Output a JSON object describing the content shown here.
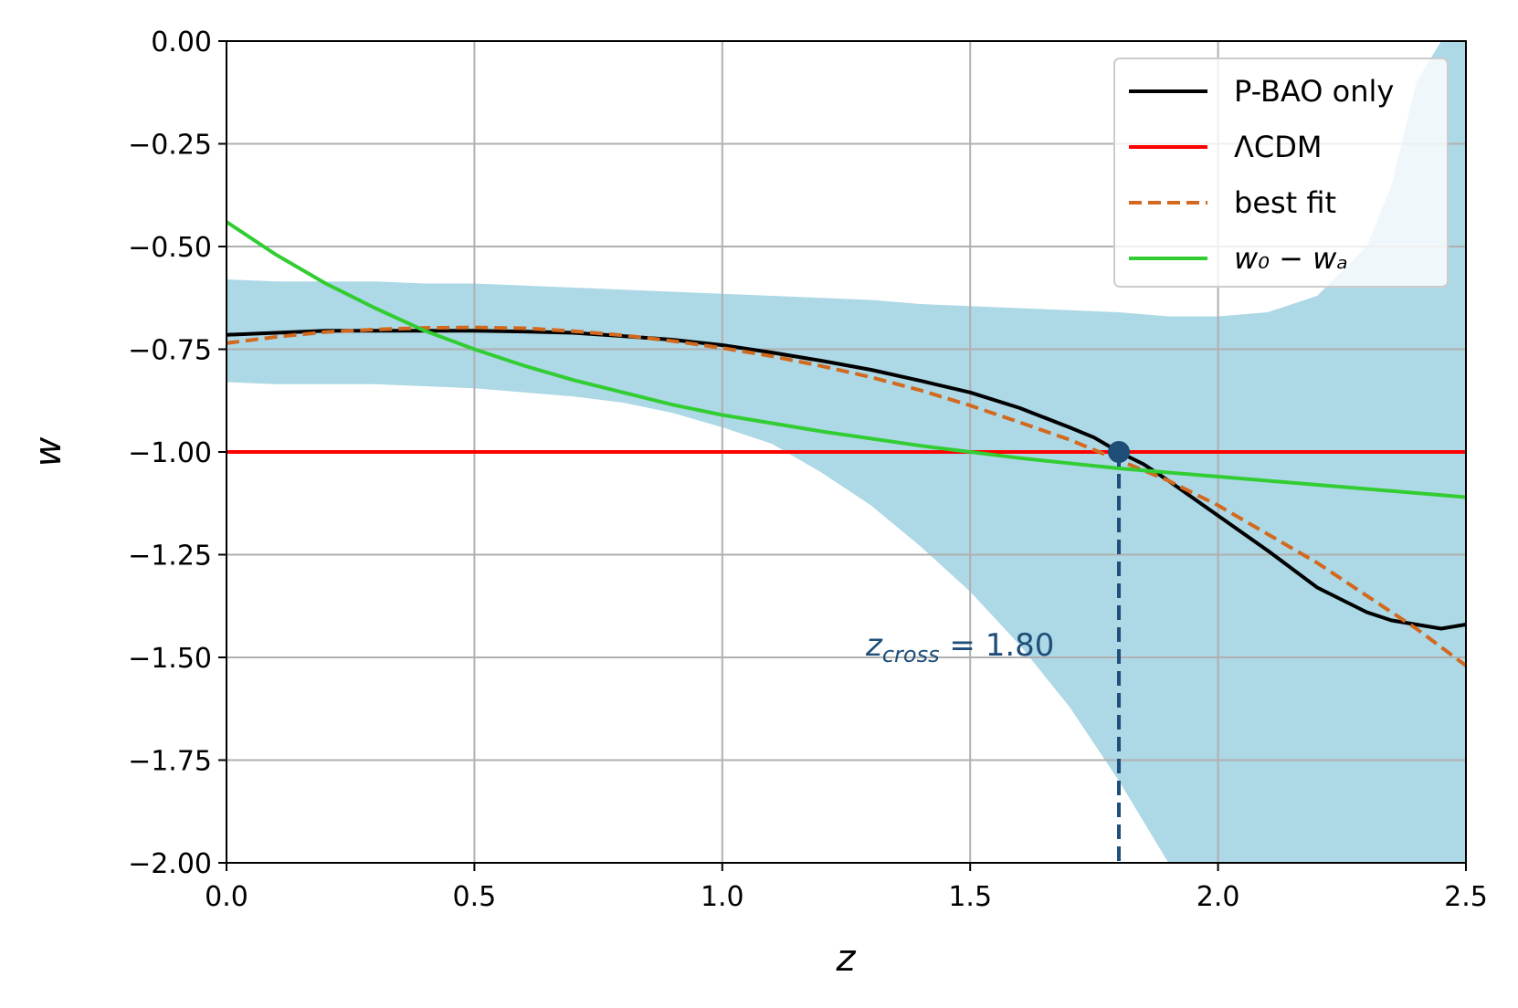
{
  "chart_data": {
    "type": "line",
    "xlabel": "z",
    "ylabel": "w",
    "xlim": [
      0.0,
      2.5
    ],
    "ylim": [
      -2.0,
      0.0
    ],
    "grid": true,
    "legend_placement": "top-right",
    "x_ticks": [
      "0.0",
      "0.5",
      "1.0",
      "1.5",
      "2.0",
      "2.5"
    ],
    "x_tick_values": [
      0.0,
      0.5,
      1.0,
      1.5,
      2.0,
      2.5
    ],
    "y_ticks": [
      "0.00",
      "−0.25",
      "−0.50",
      "−0.75",
      "−1.00",
      "−1.25",
      "−1.50",
      "−1.75",
      "−2.00"
    ],
    "y_tick_values": [
      0.0,
      -0.25,
      -0.5,
      -0.75,
      -1.0,
      -1.25,
      -1.5,
      -1.75,
      -2.0
    ],
    "band": {
      "color": "#add8e6",
      "x": [
        0.0,
        0.1,
        0.2,
        0.3,
        0.4,
        0.5,
        0.6,
        0.7,
        0.8,
        0.9,
        1.0,
        1.1,
        1.2,
        1.3,
        1.4,
        1.5,
        1.6,
        1.7,
        1.8,
        1.85,
        1.9,
        2.0,
        2.1,
        2.2,
        2.3,
        2.35,
        2.4,
        2.45,
        2.5
      ],
      "upper": [
        -0.58,
        -0.585,
        -0.585,
        -0.585,
        -0.59,
        -0.59,
        -0.595,
        -0.6,
        -0.605,
        -0.61,
        -0.615,
        -0.62,
        -0.625,
        -0.63,
        -0.64,
        -0.645,
        -0.65,
        -0.655,
        -0.66,
        -0.665,
        -0.67,
        -0.67,
        -0.66,
        -0.62,
        -0.5,
        -0.35,
        -0.1,
        0.0,
        0.0
      ],
      "lower": [
        -0.83,
        -0.835,
        -0.835,
        -0.835,
        -0.84,
        -0.845,
        -0.855,
        -0.865,
        -0.88,
        -0.905,
        -0.94,
        -0.98,
        -1.05,
        -1.13,
        -1.23,
        -1.34,
        -1.47,
        -1.62,
        -1.8,
        -1.9,
        -2.0,
        -2.0,
        -2.0,
        -2.0,
        -2.0,
        -2.0,
        -2.0,
        -2.0,
        -2.0
      ]
    },
    "series": [
      {
        "name": "P-BAO only",
        "color": "#000000",
        "style": "solid",
        "x": [
          0.0,
          0.1,
          0.2,
          0.3,
          0.4,
          0.5,
          0.6,
          0.7,
          0.8,
          0.9,
          1.0,
          1.1,
          1.2,
          1.3,
          1.4,
          1.5,
          1.6,
          1.7,
          1.75,
          1.8,
          1.85,
          1.9,
          2.0,
          2.1,
          2.2,
          2.3,
          2.35,
          2.4,
          2.45,
          2.5
        ],
        "y": [
          -0.715,
          -0.71,
          -0.705,
          -0.705,
          -0.705,
          -0.705,
          -0.707,
          -0.71,
          -0.718,
          -0.727,
          -0.74,
          -0.758,
          -0.778,
          -0.8,
          -0.827,
          -0.855,
          -0.893,
          -0.94,
          -0.965,
          -1.0,
          -1.03,
          -1.07,
          -1.155,
          -1.24,
          -1.33,
          -1.39,
          -1.41,
          -1.42,
          -1.43,
          -1.42
        ]
      },
      {
        "name": "ΛCDM",
        "color": "#ff0000",
        "style": "solid",
        "x": [
          0.0,
          2.5
        ],
        "y": [
          -1.0,
          -1.0
        ]
      },
      {
        "name": "best fit",
        "color": "#d2691e",
        "style": "dashed",
        "x": [
          0.0,
          0.1,
          0.2,
          0.3,
          0.4,
          0.5,
          0.6,
          0.7,
          0.8,
          0.9,
          1.0,
          1.1,
          1.2,
          1.3,
          1.4,
          1.5,
          1.6,
          1.7,
          1.8,
          1.9,
          2.0,
          2.1,
          2.2,
          2.3,
          2.4,
          2.5
        ],
        "y": [
          -0.735,
          -0.72,
          -0.708,
          -0.702,
          -0.698,
          -0.697,
          -0.699,
          -0.706,
          -0.716,
          -0.73,
          -0.747,
          -0.767,
          -0.791,
          -0.818,
          -0.85,
          -0.887,
          -0.928,
          -0.97,
          -1.02,
          -1.07,
          -1.13,
          -1.2,
          -1.27,
          -1.35,
          -1.43,
          -1.52
        ]
      },
      {
        "name": "w₀ − wₐ",
        "color": "#32cd32",
        "style": "solid",
        "x": [
          0.0,
          0.1,
          0.2,
          0.3,
          0.4,
          0.5,
          0.6,
          0.7,
          0.8,
          0.9,
          1.0,
          1.2,
          1.4,
          1.6,
          1.8,
          2.0,
          2.2,
          2.5
        ],
        "y": [
          -0.44,
          -0.52,
          -0.59,
          -0.65,
          -0.705,
          -0.75,
          -0.79,
          -0.825,
          -0.855,
          -0.885,
          -0.91,
          -0.95,
          -0.985,
          -1.015,
          -1.04,
          -1.06,
          -1.08,
          -1.11
        ]
      }
    ],
    "crossing_point": {
      "x": 1.8,
      "y": -1.0,
      "color": "#1f4e79"
    },
    "annotation": {
      "prefix": "z",
      "subscript": "cross",
      "suffix": " = 1.80"
    }
  }
}
